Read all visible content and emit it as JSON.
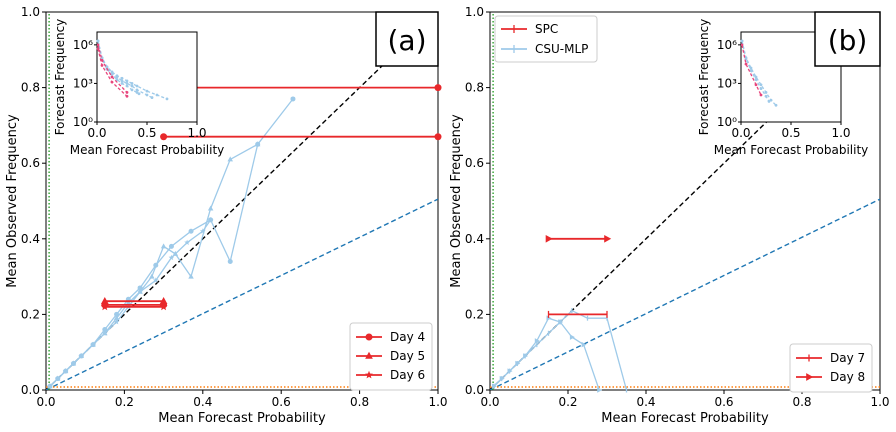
{
  "chart_data": [
    {
      "panel_label": "(a)",
      "type": "line",
      "xlabel": "Mean Forecast Probability",
      "ylabel": "Mean Observed Frequency",
      "xlim": [
        0,
        1
      ],
      "ylim": [
        0,
        1
      ],
      "xticks": [
        "0.0",
        "0.2",
        "0.4",
        "0.6",
        "0.8",
        "1.0"
      ],
      "yticks": [
        "0.0",
        "0.2",
        "0.4",
        "0.6",
        "0.8",
        "1.0"
      ],
      "legend_position": "lower right",
      "reference_lines": [
        {
          "kind": "perfect-reliability",
          "color": "#000000",
          "points": [
            [
              0,
              0
            ],
            [
              1,
              1
            ]
          ]
        },
        {
          "kind": "no-skill",
          "color": "#1f77b4",
          "points": [
            [
              0,
              0
            ],
            [
              1,
              0.505
            ]
          ]
        },
        {
          "kind": "climatology-x",
          "color": "#2ca02c",
          "points": [
            [
              0.008,
              0
            ],
            [
              0.008,
              1
            ]
          ]
        },
        {
          "kind": "climatology-y",
          "color": "#ff7f0e",
          "points": [
            [
              0,
              0.008
            ],
            [
              1,
              0.008
            ]
          ]
        }
      ],
      "series": [
        {
          "name": "Day 4",
          "source": "SPC",
          "color": "#e8282b",
          "marker": "circle",
          "segments": [
            {
              "x": [
                0.3,
                1.0
              ],
              "y": [
                0.8,
                0.8
              ]
            },
            {
              "x": [
                0.3,
                1.0
              ],
              "y": [
                0.67,
                0.67
              ]
            },
            {
              "x": [
                0.15,
                0.3
              ],
              "y": [
                0.225,
                0.225
              ]
            }
          ]
        },
        {
          "name": "Day 5",
          "source": "SPC",
          "color": "#e8282b",
          "marker": "triangle",
          "segments": [
            {
              "x": [
                0.15,
                0.3
              ],
              "y": [
                0.235,
                0.235
              ]
            }
          ]
        },
        {
          "name": "Day 6",
          "source": "SPC",
          "color": "#e8282b",
          "marker": "star",
          "segments": [
            {
              "x": [
                0.15,
                0.3
              ],
              "y": [
                0.22,
                0.22
              ]
            }
          ]
        },
        {
          "source": "CSU-MLP",
          "color": "#9ecae9",
          "marker": "circle",
          "segments": [
            {
              "x": [
                0.01,
                0.03,
                0.05,
                0.07,
                0.09,
                0.12,
                0.15,
                0.18,
                0.21,
                0.24,
                0.28,
                0.32,
                0.37,
                0.42,
                0.47,
                0.54,
                0.63
              ],
              "y": [
                0.01,
                0.03,
                0.05,
                0.07,
                0.09,
                0.12,
                0.16,
                0.2,
                0.24,
                0.27,
                0.33,
                0.38,
                0.42,
                0.45,
                0.34,
                0.65,
                0.77
              ]
            }
          ]
        },
        {
          "source": "CSU-MLP",
          "color": "#9ecae9",
          "marker": "triangle",
          "segments": [
            {
              "x": [
                0.01,
                0.03,
                0.05,
                0.07,
                0.09,
                0.12,
                0.15,
                0.18,
                0.21,
                0.24,
                0.27,
                0.3,
                0.33,
                0.37,
                0.42,
                0.47,
                0.54
              ],
              "y": [
                0.01,
                0.03,
                0.05,
                0.07,
                0.09,
                0.12,
                0.15,
                0.19,
                0.23,
                0.26,
                0.3,
                0.38,
                0.36,
                0.3,
                0.48,
                0.61,
                0.65
              ]
            }
          ]
        },
        {
          "source": "CSU-MLP",
          "color": "#9ecae9",
          "marker": "star",
          "segments": [
            {
              "x": [
                0.01,
                0.03,
                0.05,
                0.07,
                0.09,
                0.12,
                0.15,
                0.18,
                0.21,
                0.24,
                0.28,
                0.32,
                0.36,
                0.4,
                0.42
              ],
              "y": [
                0.01,
                0.03,
                0.05,
                0.07,
                0.09,
                0.12,
                0.15,
                0.18,
                0.22,
                0.26,
                0.29,
                0.35,
                0.39,
                0.42,
                0.45
              ]
            }
          ]
        }
      ],
      "inset": {
        "xlabel": "Mean Forecast Probability",
        "ylabel": "Forecast Frequency",
        "xticks": [
          "0.0",
          "0.5",
          "1.0"
        ],
        "yticks": [
          "10⁰",
          "10³",
          "10⁶"
        ],
        "scale_y": "log",
        "ylim_log10": [
          0,
          7
        ],
        "series": [
          {
            "color": "#9ecae9",
            "style": "dashed",
            "x": [
              0.01,
              0.05,
              0.1,
              0.15,
              0.2,
              0.25,
              0.3,
              0.35,
              0.4,
              0.5,
              0.6,
              0.7
            ],
            "log10_y": [
              6.3,
              5.0,
              4.3,
              3.9,
              3.6,
              3.4,
              3.2,
              3.0,
              2.8,
              2.4,
              2.1,
              1.8
            ]
          },
          {
            "color": "#9ecae9",
            "style": "dashed",
            "x": [
              0.01,
              0.05,
              0.1,
              0.15,
              0.2,
              0.25,
              0.3,
              0.35,
              0.4,
              0.5,
              0.55
            ],
            "log10_y": [
              6.3,
              5.0,
              4.2,
              3.8,
              3.5,
              3.2,
              3.0,
              2.8,
              2.5,
              2.1,
              1.9
            ]
          },
          {
            "color": "#9ecae9",
            "style": "dashed",
            "x": [
              0.01,
              0.05,
              0.1,
              0.15,
              0.2,
              0.25,
              0.3,
              0.35,
              0.4,
              0.42
            ],
            "log10_y": [
              6.3,
              4.9,
              4.1,
              3.7,
              3.3,
              3.0,
              2.8,
              2.5,
              2.3,
              2.2
            ]
          },
          {
            "color": "#e8457c",
            "style": "dashed",
            "x": [
              0.01,
              0.05,
              0.15,
              0.3
            ],
            "log10_y": [
              6.0,
              4.8,
              3.5,
              2.3
            ]
          },
          {
            "color": "#e8457c",
            "style": "dashed",
            "x": [
              0.01,
              0.05,
              0.15,
              0.3
            ],
            "log10_y": [
              5.7,
              4.4,
              3.1,
              2.0
            ]
          }
        ]
      }
    },
    {
      "panel_label": "(b)",
      "type": "line",
      "xlabel": "Mean Forecast Probability",
      "ylabel": "Mean Observed Frequency",
      "xlim": [
        0,
        1
      ],
      "ylim": [
        0,
        1
      ],
      "xticks": [
        "0.0",
        "0.2",
        "0.4",
        "0.6",
        "0.8",
        "1.0"
      ],
      "yticks": [
        "0.0",
        "0.2",
        "0.4",
        "0.6",
        "0.8",
        "1.0"
      ],
      "legend_position": "lower right",
      "source_legend": {
        "position": "upper left",
        "entries": [
          "SPC",
          "CSU-MLP"
        ]
      },
      "reference_lines": [
        {
          "kind": "perfect-reliability",
          "color": "#000000",
          "points": [
            [
              0,
              0
            ],
            [
              1,
              1
            ]
          ]
        },
        {
          "kind": "no-skill",
          "color": "#1f77b4",
          "points": [
            [
              0,
              0
            ],
            [
              1,
              0.505
            ]
          ]
        },
        {
          "kind": "climatology-x",
          "color": "#2ca02c",
          "points": [
            [
              0.008,
              0
            ],
            [
              0.008,
              1
            ]
          ]
        },
        {
          "kind": "climatology-y",
          "color": "#ff7f0e",
          "points": [
            [
              0,
              0.008
            ],
            [
              1,
              0.008
            ]
          ]
        }
      ],
      "series": [
        {
          "name": "Day 7",
          "source": "SPC",
          "color": "#e8282b",
          "marker": "vline",
          "segments": [
            {
              "x": [
                0.15,
                0.3
              ],
              "y": [
                0.2,
                0.2
              ]
            }
          ]
        },
        {
          "name": "Day 8",
          "source": "SPC",
          "color": "#e8282b",
          "marker": "triangle-right",
          "segments": [
            {
              "x": [
                0.15,
                0.3
              ],
              "y": [
                0.4,
                0.4
              ]
            }
          ]
        },
        {
          "source": "CSU-MLP",
          "color": "#9ecae9",
          "marker": "vline",
          "segments": [
            {
              "x": [
                0.01,
                0.03,
                0.05,
                0.07,
                0.09,
                0.12,
                0.15,
                0.18,
                0.21,
                0.25,
                0.3,
                0.35
              ],
              "y": [
                0.01,
                0.03,
                0.05,
                0.07,
                0.09,
                0.12,
                0.15,
                0.18,
                0.21,
                0.19,
                0.19,
                0.0
              ]
            }
          ]
        },
        {
          "source": "CSU-MLP",
          "color": "#9ecae9",
          "marker": "triangle-right",
          "segments": [
            {
              "x": [
                0.01,
                0.03,
                0.05,
                0.07,
                0.09,
                0.12,
                0.15,
                0.18,
                0.21,
                0.24,
                0.28
              ],
              "y": [
                0.01,
                0.03,
                0.05,
                0.07,
                0.09,
                0.13,
                0.19,
                0.18,
                0.14,
                0.12,
                0.0
              ]
            }
          ]
        }
      ],
      "inset": {
        "xlabel": "Mean Forecast Probability",
        "ylabel": "Forecast Frequency",
        "xticks": [
          "0.0",
          "0.5",
          "1.0"
        ],
        "yticks": [
          "10⁰",
          "10³",
          "10⁶"
        ],
        "scale_y": "log",
        "ylim_log10": [
          0,
          7
        ],
        "series": [
          {
            "color": "#9ecae9",
            "style": "dashed",
            "x": [
              0.01,
              0.05,
              0.1,
              0.15,
              0.2,
              0.25,
              0.3,
              0.35
            ],
            "log10_y": [
              6.3,
              5.0,
              4.2,
              3.5,
              2.9,
              2.3,
              1.7,
              1.3
            ]
          },
          {
            "color": "#9ecae9",
            "style": "dashed",
            "x": [
              0.01,
              0.05,
              0.1,
              0.15,
              0.2,
              0.25,
              0.28
            ],
            "log10_y": [
              6.3,
              4.9,
              4.0,
              3.3,
              2.6,
              2.0,
              1.6
            ]
          },
          {
            "color": "#e8457c",
            "style": "dashed",
            "x": [
              0.01,
              0.05,
              0.15,
              0.2
            ],
            "log10_y": [
              6.0,
              4.5,
              2.9,
              2.1
            ]
          }
        ]
      }
    }
  ]
}
